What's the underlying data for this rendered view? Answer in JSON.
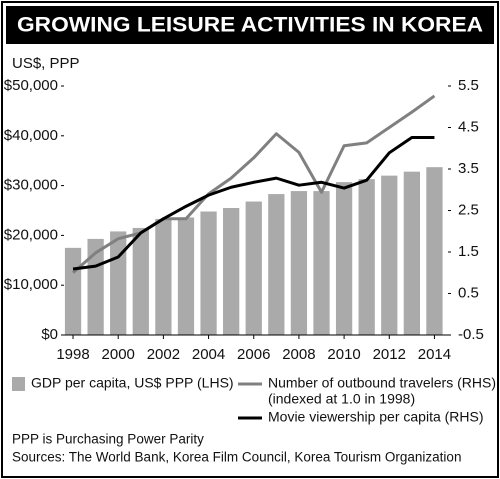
{
  "chart_data": {
    "type": "bar-line",
    "title": "GROWING LEISURE ACTIVITIES IN KOREA",
    "y_axis_label": "US$, PPP",
    "x": [
      1998,
      1999,
      2000,
      2001,
      2002,
      2003,
      2004,
      2005,
      2006,
      2007,
      2008,
      2009,
      2010,
      2011,
      2012,
      2013,
      2014
    ],
    "xlim": [
      1997.6,
      2014.6
    ],
    "xticks": [
      1998,
      2000,
      2002,
      2004,
      2006,
      2008,
      2010,
      2012,
      2014
    ],
    "ylim": [
      0,
      50000
    ],
    "yticks": [
      {
        "value": 0,
        "label": "$0"
      },
      {
        "value": 10000,
        "label": "$10,000"
      },
      {
        "value": 20000,
        "label": "$20,000"
      },
      {
        "value": 30000,
        "label": "$30,000"
      },
      {
        "value": 40000,
        "label": "$40,000"
      },
      {
        "value": 50000,
        "label": "$50,000"
      }
    ],
    "y2lim": [
      -0.5,
      5.5
    ],
    "y2ticks": [
      -0.5,
      0.5,
      1.5,
      2.5,
      3.5,
      4.5,
      5.5
    ],
    "series": [
      {
        "name": "GDP per capita, US$ PPP (LHS)",
        "type": "bar",
        "color": "#aaaaaa",
        "values": [
          17500,
          19300,
          20800,
          21500,
          23300,
          23600,
          24800,
          25500,
          26800,
          28300,
          28900,
          28900,
          30700,
          31300,
          32000,
          32800,
          33700
        ]
      },
      {
        "name": "Number of outbound travelers (RHS)",
        "note": "(indexed at 1.0 in 1998)",
        "type": "line",
        "axis": "y2",
        "color": "#808080",
        "values": [
          1.0,
          1.48,
          1.82,
          1.96,
          2.3,
          2.3,
          2.9,
          3.28,
          3.77,
          4.35,
          3.9,
          2.94,
          4.06,
          4.13,
          4.5,
          4.87,
          5.26
        ]
      },
      {
        "name": "Movie viewership per capita (RHS)",
        "type": "line",
        "axis": "y2",
        "color": "#000000",
        "values": [
          1.09,
          1.16,
          1.38,
          1.96,
          2.3,
          2.6,
          2.87,
          3.06,
          3.18,
          3.28,
          3.11,
          3.18,
          3.04,
          3.23,
          3.89,
          4.26,
          4.26
        ]
      }
    ],
    "notes": [
      "PPP is Purchasing Power Parity",
      "Sources: The World Bank, Korea Film Council, Korea Tourism Organization"
    ]
  }
}
